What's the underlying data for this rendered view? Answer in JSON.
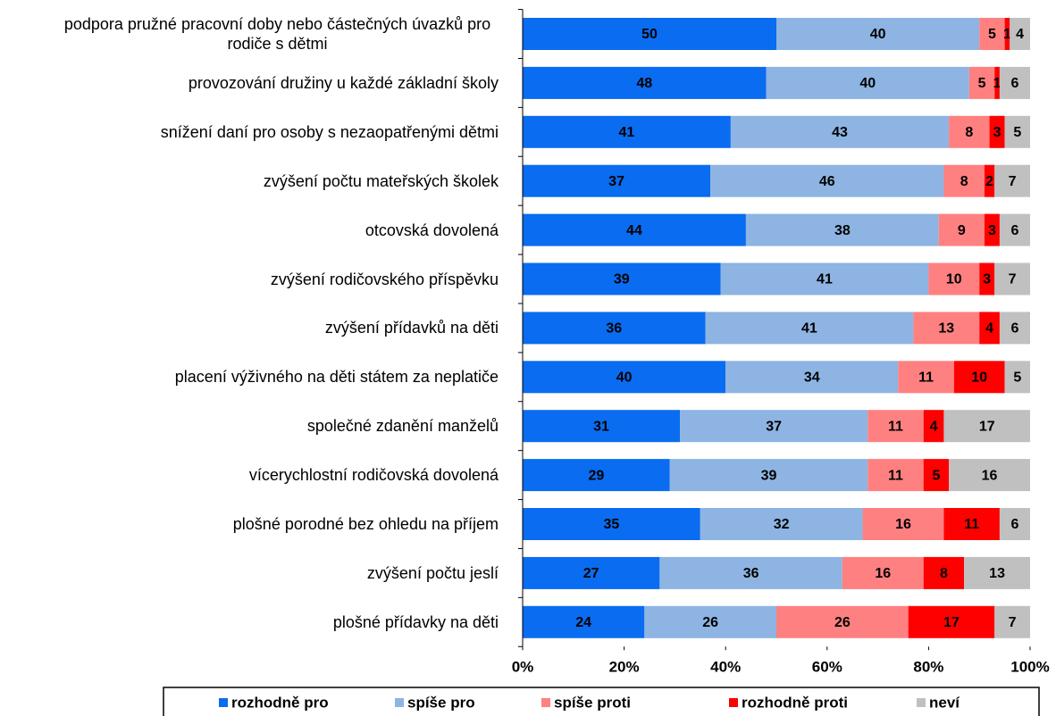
{
  "chart_data": {
    "type": "stacked_barh",
    "categories": [
      "podpora pružné pracovní doby nebo částečných úvazků pro rodiče s dětmi",
      "provozování družiny u každé základní školy",
      "snížení daní pro osoby s nezaopatřenými dětmi",
      "zvýšení počtu mateřských školek",
      "otcovská dovolená",
      "zvýšení rodičovského příspěvku",
      "zvýšení přídavků na děti",
      "placení výživného na děti státem za neplatiče",
      "společné zdanění manželů",
      "vícerychlostní rodičovská dovolená",
      "plošné porodné bez ohledu na příjem",
      "zvýšení počtu jeslí",
      "plošné přídavky na děti"
    ],
    "series": [
      {
        "name": "rozhodně pro",
        "color": "#0a6cf0",
        "values": [
          50,
          48,
          41,
          37,
          44,
          39,
          36,
          40,
          31,
          29,
          35,
          27,
          24
        ]
      },
      {
        "name": "spíše pro",
        "color": "#8db4e2",
        "values": [
          40,
          40,
          43,
          46,
          38,
          41,
          41,
          34,
          37,
          39,
          32,
          36,
          26
        ]
      },
      {
        "name": "spíše proti",
        "color": "#ff8080",
        "values": [
          5,
          5,
          8,
          8,
          9,
          10,
          13,
          11,
          11,
          11,
          16,
          16,
          26
        ]
      },
      {
        "name": "rozhodně proti",
        "color": "#ff0000",
        "values": [
          1,
          1,
          3,
          2,
          3,
          3,
          4,
          10,
          4,
          5,
          11,
          8,
          17
        ]
      },
      {
        "name": "neví",
        "color": "#c0c0c0",
        "values": [
          4,
          6,
          5,
          7,
          6,
          7,
          6,
          5,
          17,
          16,
          6,
          13,
          7
        ]
      }
    ],
    "xlim": [
      0,
      100
    ],
    "xticks": [
      {
        "value": 0,
        "label": "0%"
      },
      {
        "value": 20,
        "label": "20%"
      },
      {
        "value": 40,
        "label": "40%"
      },
      {
        "value": 60,
        "label": "60%"
      },
      {
        "value": 80,
        "label": "80%"
      },
      {
        "value": 100,
        "label": "100%"
      }
    ],
    "legend": "bottom"
  }
}
